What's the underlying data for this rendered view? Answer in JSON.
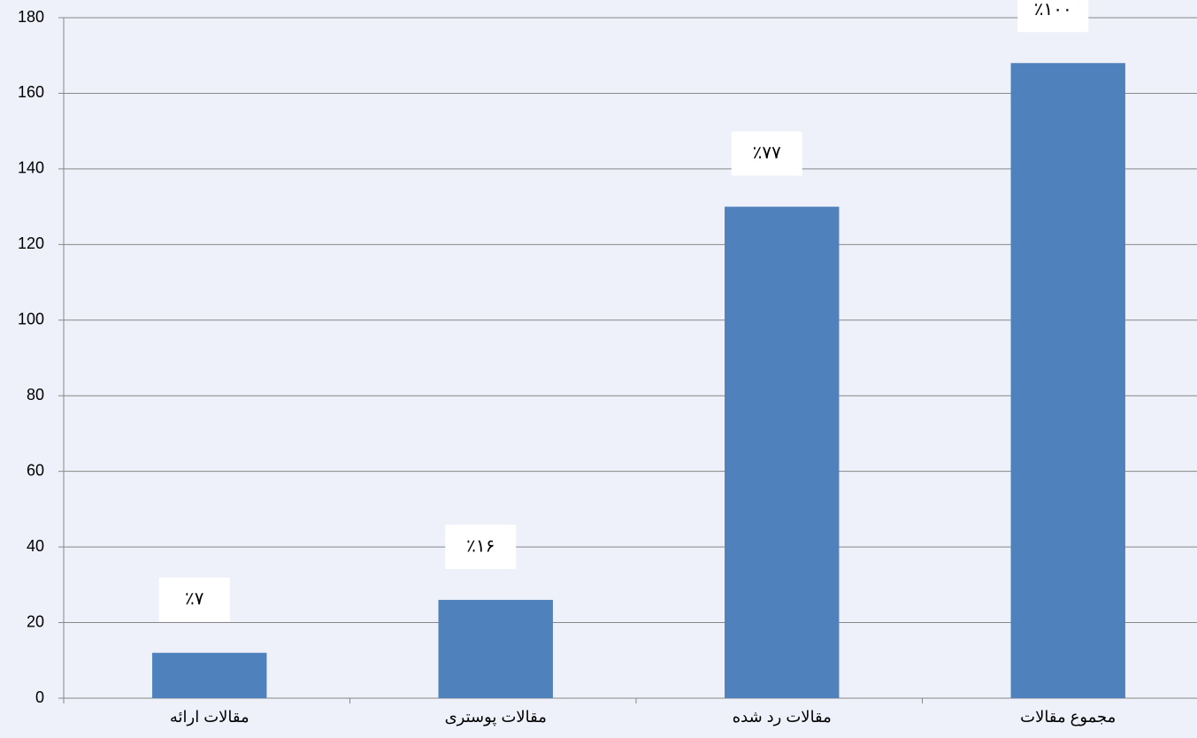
{
  "chart_data": {
    "type": "bar",
    "categories": [
      "مقالات ارائه",
      "مقالات پوستری",
      "مقالات رد شده",
      "مجموع مقالات"
    ],
    "values": [
      12,
      26,
      130,
      168
    ],
    "percent_labels": [
      "٪۷",
      "٪۱۶",
      "٪۷۷",
      "٪۱۰۰"
    ],
    "color": "#4f81bd",
    "ylim": [
      0,
      180
    ],
    "yticks": [
      0,
      20,
      40,
      60,
      80,
      100,
      120,
      140,
      160,
      180
    ],
    "grid": true
  }
}
